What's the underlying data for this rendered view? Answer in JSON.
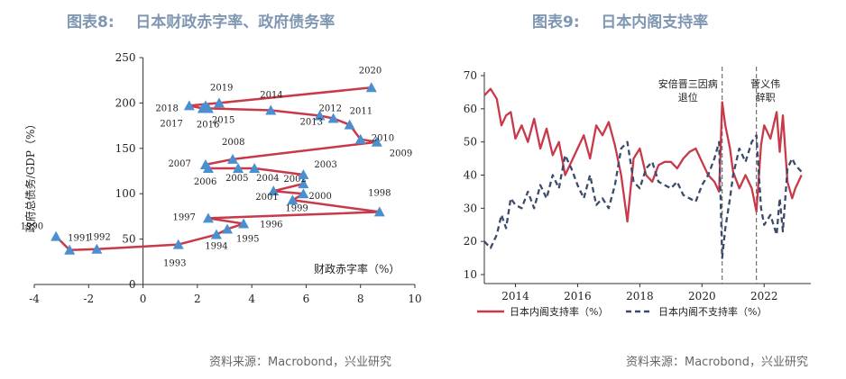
{
  "left": {
    "title": "图表8:    日本财政赤字率、政府债务率",
    "source": "资料来源：Macrobond，兴业研究",
    "chart_data": {
      "type": "scatter",
      "xlabel": "财政赤字率（%）",
      "ylabel": "政府总债务/GDP（%）",
      "xlim": [
        -4,
        10
      ],
      "ylim": [
        0,
        250
      ],
      "x_ticks": [
        "-4",
        "-2",
        "0",
        "2",
        "4",
        "6",
        "8",
        "10"
      ],
      "y_ticks": [
        "0",
        "50",
        "100",
        "150",
        "200",
        "250"
      ],
      "marker": "triangle",
      "color": "#c8394a",
      "marker_color": "#4a8fd0",
      "points": [
        {
          "year": "1990",
          "x": -3.2,
          "y": 53
        },
        {
          "year": "1991",
          "x": -2.7,
          "y": 38
        },
        {
          "year": "1992",
          "x": -1.7,
          "y": 39
        },
        {
          "year": "1993",
          "x": 1.3,
          "y": 44
        },
        {
          "year": "1994",
          "x": 2.7,
          "y": 55
        },
        {
          "year": "1995",
          "x": 3.1,
          "y": 61
        },
        {
          "year": "1996",
          "x": 3.7,
          "y": 67
        },
        {
          "year": "1997",
          "x": 2.4,
          "y": 73
        },
        {
          "year": "1998",
          "x": 8.7,
          "y": 80
        },
        {
          "year": "1999",
          "x": 5.5,
          "y": 93
        },
        {
          "year": "2000",
          "x": 5.9,
          "y": 100
        },
        {
          "year": "2001",
          "x": 4.8,
          "y": 103
        },
        {
          "year": "2002",
          "x": 5.9,
          "y": 111
        },
        {
          "year": "2003",
          "x": 5.9,
          "y": 121
        },
        {
          "year": "2004",
          "x": 4.1,
          "y": 128
        },
        {
          "year": "2005",
          "x": 3.5,
          "y": 128
        },
        {
          "year": "2006",
          "x": 2.4,
          "y": 128
        },
        {
          "year": "2007",
          "x": 2.3,
          "y": 132
        },
        {
          "year": "2008",
          "x": 3.3,
          "y": 138
        },
        {
          "year": "2009",
          "x": 8.6,
          "y": 157
        },
        {
          "year": "2010",
          "x": 8.0,
          "y": 160
        },
        {
          "year": "2011",
          "x": 7.6,
          "y": 176
        },
        {
          "year": "2012",
          "x": 7.0,
          "y": 183
        },
        {
          "year": "2013",
          "x": 6.5,
          "y": 186
        },
        {
          "year": "2014",
          "x": 4.7,
          "y": 192
        },
        {
          "year": "2015",
          "x": 2.4,
          "y": 194
        },
        {
          "year": "2016",
          "x": 2.3,
          "y": 197
        },
        {
          "year": "2017",
          "x": 2.2,
          "y": 194
        },
        {
          "year": "2018",
          "x": 1.7,
          "y": 197
        },
        {
          "year": "2019",
          "x": 2.8,
          "y": 200
        },
        {
          "year": "2020",
          "x": 8.4,
          "y": 217
        }
      ]
    }
  },
  "right": {
    "title": "图表9:    日本内阁支持率",
    "source": "资料来源：Macrobond，兴业研究",
    "chart_data": {
      "type": "line",
      "xlim": [
        2013,
        2023.5
      ],
      "ylim": [
        10,
        70
      ],
      "x_ticks": [
        "2014",
        "2016",
        "2018",
        "2020",
        "2022"
      ],
      "y_ticks": [
        "10",
        "20",
        "30",
        "40",
        "50",
        "60",
        "70"
      ],
      "series": [
        {
          "name": "日本内阁支持率（%）",
          "color": "#c8394a",
          "dash": "solid",
          "x": [
            2013.0,
            2013.2,
            2013.4,
            2013.55,
            2013.7,
            2013.85,
            2014.0,
            2014.2,
            2014.4,
            2014.6,
            2014.8,
            2015.0,
            2015.2,
            2015.4,
            2015.6,
            2015.8,
            2016.0,
            2016.2,
            2016.4,
            2016.6,
            2016.8,
            2017.0,
            2017.2,
            2017.4,
            2017.6,
            2017.8,
            2018.0,
            2018.2,
            2018.4,
            2018.6,
            2018.8,
            2019.0,
            2019.2,
            2019.4,
            2019.6,
            2019.8,
            2020.0,
            2020.2,
            2020.4,
            2020.55,
            2020.65,
            2020.75,
            2020.9,
            2021.0,
            2021.2,
            2021.4,
            2021.6,
            2021.75,
            2021.9,
            2022.0,
            2022.2,
            2022.4,
            2022.5,
            2022.6,
            2022.75,
            2022.9,
            2023.0,
            2023.2
          ],
          "y": [
            64,
            66,
            63,
            55,
            58,
            59,
            51,
            55,
            50,
            57,
            48,
            54,
            46,
            50,
            40,
            44,
            48,
            52,
            45,
            55,
            52,
            56,
            49,
            40,
            26,
            45,
            48,
            40,
            38,
            43,
            44,
            44,
            42,
            45,
            47,
            48,
            44,
            40,
            38,
            35,
            62,
            55,
            48,
            41,
            36,
            40,
            36,
            29,
            49,
            55,
            51,
            59,
            47,
            58,
            38,
            33,
            36,
            40
          ]
        },
        {
          "name": "日本内阁不支持率（%）",
          "color": "#3b4b6b",
          "dash": "dashed",
          "x": [
            2013.0,
            2013.2,
            2013.4,
            2013.55,
            2013.7,
            2013.85,
            2014.0,
            2014.2,
            2014.4,
            2014.6,
            2014.8,
            2015.0,
            2015.2,
            2015.4,
            2015.6,
            2015.8,
            2016.0,
            2016.2,
            2016.4,
            2016.6,
            2016.8,
            2017.0,
            2017.2,
            2017.4,
            2017.6,
            2017.8,
            2018.0,
            2018.2,
            2018.4,
            2018.6,
            2018.8,
            2019.0,
            2019.2,
            2019.4,
            2019.6,
            2019.8,
            2020.0,
            2020.2,
            2020.4,
            2020.55,
            2020.65,
            2020.75,
            2020.9,
            2021.0,
            2021.2,
            2021.4,
            2021.6,
            2021.75,
            2021.9,
            2022.0,
            2022.2,
            2022.4,
            2022.5,
            2022.6,
            2022.75,
            2022.9,
            2023.0,
            2023.2
          ],
          "y": [
            20,
            18,
            22,
            28,
            24,
            33,
            31,
            30,
            35,
            30,
            37,
            33,
            40,
            36,
            46,
            42,
            37,
            33,
            40,
            31,
            33,
            30,
            37,
            48,
            50,
            38,
            36,
            42,
            44,
            38,
            37,
            36,
            38,
            34,
            33,
            32,
            37,
            40,
            45,
            50,
            15,
            24,
            33,
            40,
            48,
            44,
            50,
            52,
            30,
            25,
            28,
            22,
            33,
            23,
            42,
            45,
            43,
            41
          ]
        }
      ],
      "vlines": [
        {
          "x": 2020.65,
          "label_lines": [
            "安倍晋三因病",
            "退位"
          ]
        },
        {
          "x": 2021.75,
          "label_lines": [
            "菅义伟",
            "辞职"
          ]
        }
      ]
    }
  }
}
